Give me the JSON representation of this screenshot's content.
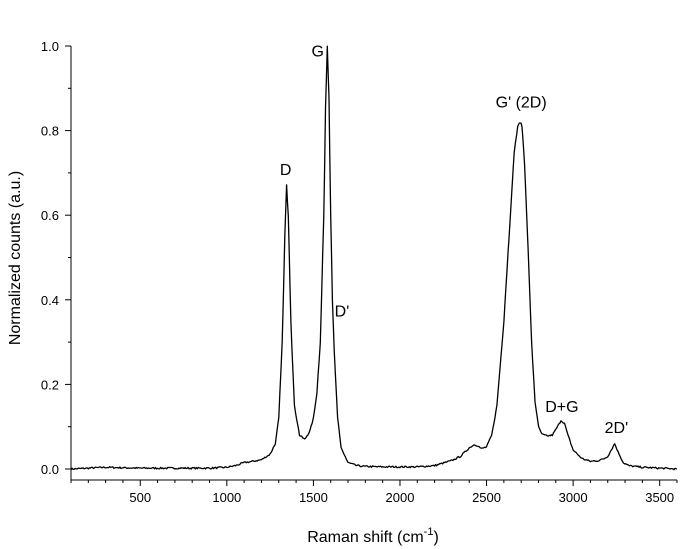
{
  "chart_data": {
    "type": "line",
    "title": "",
    "xlabel": "Raman shift (cm",
    "xlabel_sup": "-1",
    "xlabel_tail": ")",
    "ylabel": "Normalized counts (a.u.)",
    "xlim": [
      100,
      3600
    ],
    "ylim": [
      0,
      1.0
    ],
    "grid": false,
    "legend": "none",
    "line_color": "#000000",
    "x_ticks": [
      500,
      1000,
      1500,
      2000,
      2500,
      3000,
      3500
    ],
    "x_tick_labels": [
      "500",
      "1000",
      "1500",
      "2000",
      "2500",
      "3000",
      "3500"
    ],
    "y_ticks": [
      0,
      0.2,
      0.4,
      0.6,
      0.8,
      1.0
    ],
    "y_tick_labels": [
      "0.0",
      "0.2",
      "0.4",
      "0.6",
      "0.8",
      "1.0"
    ],
    "series": [
      {
        "x": [
          100,
          200,
          300,
          400,
          500,
          600,
          700,
          800,
          900,
          1000,
          1050,
          1100,
          1150,
          1200,
          1250,
          1280,
          1300,
          1320,
          1335,
          1345,
          1355,
          1370,
          1390,
          1420,
          1450,
          1480,
          1500,
          1520,
          1540,
          1560,
          1570,
          1580,
          1590,
          1600,
          1610,
          1620,
          1640,
          1660,
          1700,
          1750,
          1800,
          1900,
          2000,
          2100,
          2200,
          2300,
          2350,
          2400,
          2430,
          2450,
          2470,
          2500,
          2530,
          2560,
          2600,
          2630,
          2660,
          2680,
          2695,
          2705,
          2720,
          2740,
          2760,
          2780,
          2800,
          2820,
          2850,
          2880,
          2910,
          2930,
          2950,
          2970,
          3000,
          3050,
          3100,
          3150,
          3180,
          3200,
          3220,
          3240,
          3260,
          3290,
          3320,
          3400,
          3500,
          3600
        ],
        "y": [
          0.0,
          0.002,
          0.004,
          0.003,
          0.002,
          0.002,
          0.002,
          0.002,
          0.002,
          0.004,
          0.008,
          0.015,
          0.018,
          0.022,
          0.035,
          0.06,
          0.12,
          0.3,
          0.55,
          0.67,
          0.6,
          0.35,
          0.15,
          0.08,
          0.07,
          0.09,
          0.12,
          0.18,
          0.3,
          0.6,
          0.85,
          1.0,
          0.88,
          0.6,
          0.4,
          0.28,
          0.12,
          0.05,
          0.015,
          0.008,
          0.006,
          0.005,
          0.005,
          0.005,
          0.008,
          0.02,
          0.03,
          0.05,
          0.058,
          0.055,
          0.048,
          0.052,
          0.08,
          0.15,
          0.35,
          0.55,
          0.75,
          0.81,
          0.82,
          0.81,
          0.72,
          0.52,
          0.3,
          0.16,
          0.1,
          0.082,
          0.078,
          0.08,
          0.1,
          0.115,
          0.108,
          0.08,
          0.045,
          0.025,
          0.018,
          0.02,
          0.025,
          0.03,
          0.045,
          0.06,
          0.04,
          0.015,
          0.008,
          0.004,
          0.002,
          0.0
        ]
      }
    ],
    "annotations": [
      {
        "text": "D",
        "x": 1340,
        "y": 0.695
      },
      {
        "text": "G",
        "x": 1525,
        "y": 0.975
      },
      {
        "text": "D'",
        "x": 1665,
        "y": 0.36
      },
      {
        "text": "G' (2D)",
        "x": 2700,
        "y": 0.855
      },
      {
        "text": "D+G",
        "x": 2935,
        "y": 0.135
      },
      {
        "text": "2D'",
        "x": 3250,
        "y": 0.085
      }
    ]
  }
}
